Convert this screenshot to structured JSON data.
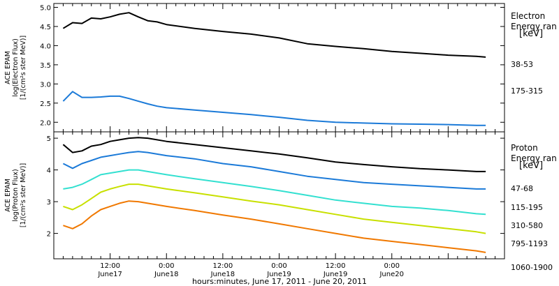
{
  "chart_data": [
    {
      "type": "line",
      "ylabel": [
        "ACE EPAM",
        "log(Electron Flux)",
        "[1/(cm²s ster MeV)]"
      ],
      "ylim": [
        1.75,
        5.1
      ],
      "yticks": [
        2.0,
        2.5,
        3.0,
        3.5,
        4.0,
        4.5,
        5.0
      ],
      "legend_title": [
        "Electron",
        "Energy ran",
        "[keV]"
      ],
      "series": [
        {
          "name": "38-53",
          "color": "#000000",
          "x": [
            2,
            4,
            6,
            8,
            10,
            12,
            14,
            16,
            18,
            20,
            22,
            24,
            30,
            36,
            42,
            48,
            54,
            60,
            66,
            72,
            78,
            84,
            90,
            92
          ],
          "y": [
            4.45,
            4.6,
            4.58,
            4.72,
            4.7,
            4.75,
            4.82,
            4.86,
            4.75,
            4.65,
            4.62,
            4.55,
            4.45,
            4.37,
            4.3,
            4.2,
            4.05,
            3.98,
            3.92,
            3.85,
            3.8,
            3.75,
            3.72,
            3.7
          ]
        },
        {
          "name": "175-315",
          "color": "#1b7ad8",
          "x": [
            2,
            4,
            6,
            8,
            10,
            12,
            14,
            16,
            18,
            20,
            22,
            24,
            30,
            36,
            42,
            48,
            54,
            60,
            66,
            72,
            78,
            84,
            90,
            92
          ],
          "y": [
            2.55,
            2.8,
            2.65,
            2.65,
            2.66,
            2.68,
            2.68,
            2.62,
            2.55,
            2.48,
            2.42,
            2.38,
            2.32,
            2.26,
            2.2,
            2.13,
            2.05,
            2.0,
            1.98,
            1.96,
            1.95,
            1.94,
            1.92,
            1.92
          ]
        }
      ]
    },
    {
      "type": "line",
      "ylabel": [
        "ACE EPAM",
        "log(Proton Flux)",
        "[1/(cm²s ster MeV)]"
      ],
      "ylim": [
        1.2,
        5.2
      ],
      "yticks": [
        2,
        3,
        4,
        5
      ],
      "legend_title": [
        "Proton",
        "Energy ran",
        "[keV]"
      ],
      "series": [
        {
          "name": "47-68",
          "color": "#000000",
          "x": [
            2,
            4,
            6,
            8,
            10,
            12,
            14,
            16,
            18,
            20,
            24,
            30,
            36,
            42,
            48,
            54,
            60,
            66,
            72,
            78,
            84,
            90,
            92
          ],
          "y": [
            4.8,
            4.55,
            4.6,
            4.75,
            4.8,
            4.9,
            4.95,
            5.0,
            5.02,
            5.0,
            4.9,
            4.8,
            4.7,
            4.6,
            4.5,
            4.38,
            4.25,
            4.17,
            4.1,
            4.04,
            4.0,
            3.95,
            3.95
          ]
        },
        {
          "name": "115-195",
          "color": "#1b7ad8",
          "x": [
            2,
            4,
            6,
            8,
            10,
            12,
            14,
            16,
            18,
            20,
            24,
            30,
            36,
            42,
            48,
            54,
            60,
            66,
            72,
            78,
            84,
            90,
            92
          ],
          "y": [
            4.2,
            4.05,
            4.2,
            4.3,
            4.4,
            4.45,
            4.5,
            4.55,
            4.58,
            4.55,
            4.45,
            4.35,
            4.2,
            4.1,
            3.95,
            3.8,
            3.7,
            3.6,
            3.55,
            3.5,
            3.45,
            3.4,
            3.4
          ]
        },
        {
          "name": "310-580",
          "color": "#33e0d0",
          "x": [
            2,
            4,
            6,
            8,
            10,
            12,
            14,
            16,
            18,
            20,
            24,
            30,
            36,
            42,
            48,
            54,
            60,
            66,
            72,
            78,
            84,
            90,
            92
          ],
          "y": [
            3.4,
            3.45,
            3.55,
            3.7,
            3.85,
            3.9,
            3.95,
            4.0,
            4.0,
            3.95,
            3.85,
            3.72,
            3.6,
            3.48,
            3.35,
            3.2,
            3.05,
            2.95,
            2.85,
            2.8,
            2.72,
            2.62,
            2.6
          ]
        },
        {
          "name": "795-1193",
          "color": "#c8e000",
          "x": [
            2,
            4,
            6,
            8,
            10,
            12,
            14,
            16,
            18,
            20,
            24,
            30,
            36,
            42,
            48,
            54,
            60,
            66,
            72,
            78,
            84,
            90,
            92
          ],
          "y": [
            2.85,
            2.75,
            2.9,
            3.1,
            3.3,
            3.4,
            3.48,
            3.55,
            3.55,
            3.5,
            3.4,
            3.28,
            3.15,
            3.02,
            2.9,
            2.75,
            2.6,
            2.45,
            2.35,
            2.25,
            2.15,
            2.05,
            2.0
          ]
        },
        {
          "name": "1060-1900",
          "color": "#f07800",
          "x": [
            2,
            4,
            6,
            8,
            10,
            12,
            14,
            16,
            18,
            20,
            24,
            30,
            36,
            42,
            48,
            54,
            60,
            66,
            72,
            78,
            84,
            90,
            92
          ],
          "y": [
            2.25,
            2.15,
            2.3,
            2.55,
            2.75,
            2.85,
            2.95,
            3.02,
            3.0,
            2.95,
            2.85,
            2.72,
            2.58,
            2.45,
            2.3,
            2.15,
            2.0,
            1.85,
            1.75,
            1.65,
            1.55,
            1.45,
            1.4
          ]
        }
      ]
    }
  ],
  "x_axis": {
    "range": [
      0,
      96
    ],
    "ticks": [
      {
        "x": 12,
        "time": "12:00",
        "date": "June17"
      },
      {
        "x": 24,
        "time": "0:00",
        "date": "June18"
      },
      {
        "x": 36,
        "time": "12:00",
        "date": "June18"
      },
      {
        "x": 48,
        "time": "0:00",
        "date": "June19"
      },
      {
        "x": 60,
        "time": "12:00",
        "date": "June19"
      },
      {
        "x": 72,
        "time": "0:00",
        "date": "June20"
      }
    ],
    "xlabel": "hours:minutes, June 17, 2011 - June 20, 2011"
  }
}
